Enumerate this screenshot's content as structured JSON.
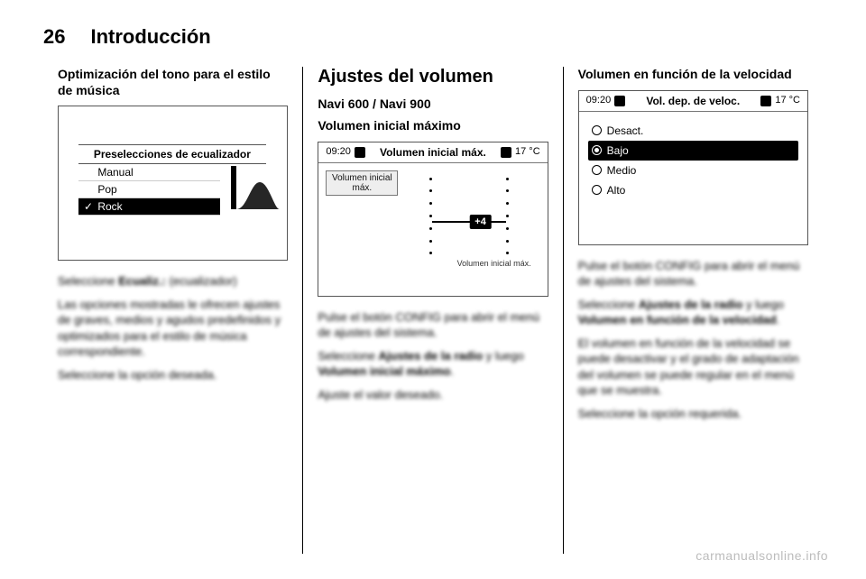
{
  "page_number": "26",
  "section_title": "Introducción",
  "watermark": "carmanualsonline.info",
  "col1": {
    "subtitle": "Optimización del tono para el estilo de música",
    "eq_title": "Preselecciones de ecualizador",
    "eq_options": [
      "Manual",
      "Pop",
      "Rock"
    ],
    "eq_selected_index": 2,
    "caption_line": "Seleccione Ecualiz.: (ecualizador)",
    "caption_bold": "Ecualiz.:",
    "body1": "Las opciones mostradas le ofrecen ajustes de graves, medios y agudos predefinidos y optimizados para el estilo de música correspondiente.",
    "body2": "Seleccione la opción deseada."
  },
  "col2": {
    "heading": "Ajustes del volumen",
    "subhead": "Navi 600 / Navi 900",
    "section_label": "Volumen inicial máximo",
    "top_time": "09:20",
    "top_title": "Volumen inicial máx.",
    "top_temp": "17 °C",
    "tab_label": "Volumen inicial máx.",
    "indicator_value": "+4",
    "bottom_caption": "Volumen inicial máx.",
    "body1": "Pulse el botón CONFIG para abrir el menú de ajustes del sistema.",
    "body2_pre": "Seleccione ",
    "body2_b1": "Ajustes de la radio",
    "body2_mid": " y luego ",
    "body2_b2": "Volumen inicial máximo",
    "body2_post": ".",
    "body3": "Ajuste el valor deseado."
  },
  "col3": {
    "subtitle": "Volumen en función de la velocidad",
    "top_time": "09:20",
    "top_title": "Vol. dep. de veloc.",
    "top_temp": "17 °C",
    "options": [
      "Desact.",
      "Bajo",
      "Medio",
      "Alto"
    ],
    "selected_index": 1,
    "body1": "Pulse el botón CONFIG para abrir el menú de ajustes del sistema.",
    "body2_pre": "Seleccione ",
    "body2_b1": "Ajustes de la radio",
    "body2_mid": " y luego ",
    "body2_b2": "Volumen en función de la velocidad",
    "body2_post": ".",
    "body3": "El volumen en función de la velocidad se puede desactivar y el grado de adaptación del volumen se puede regular en el menú que se muestra.",
    "body4": "Seleccione la opción requerida."
  }
}
